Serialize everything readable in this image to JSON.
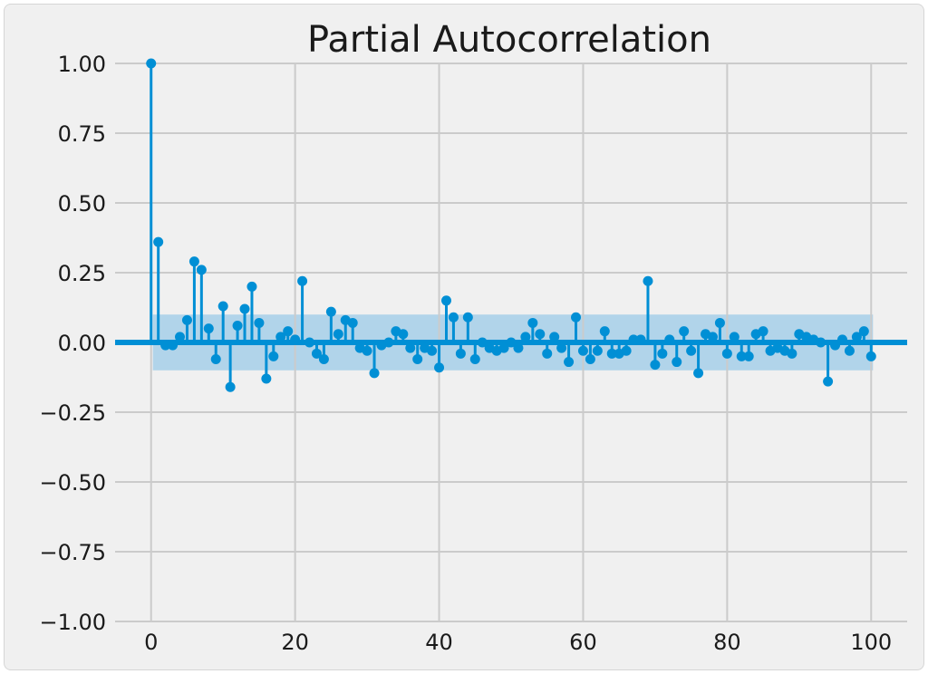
{
  "chart_data": {
    "type": "stem",
    "title": "Partial Autocorrelation",
    "xlabel": "",
    "ylabel": "",
    "xlim": [
      -5,
      105
    ],
    "ylim": [
      -1.0,
      1.0
    ],
    "xticks": [
      0,
      20,
      40,
      60,
      80,
      100
    ],
    "xtick_labels": [
      "0",
      "20",
      "40",
      "60",
      "80",
      "100"
    ],
    "yticks": [
      1.0,
      0.75,
      0.5,
      0.25,
      0.0,
      -0.25,
      -0.5,
      -0.75,
      -1.0
    ],
    "ytick_labels": [
      "1.00",
      "0.75",
      "0.50",
      "0.25",
      "0.00",
      "−0.25",
      "−0.50",
      "−0.75",
      "−1.00"
    ],
    "grid": true,
    "confidence_band": [
      -0.1,
      0.1
    ],
    "colors": {
      "series": "#008fd5",
      "band": "#8fc4e6",
      "grid": "#cbcbcb",
      "background": "#f0f0f0"
    },
    "lags": [
      0,
      1,
      2,
      3,
      4,
      5,
      6,
      7,
      8,
      9,
      10,
      11,
      12,
      13,
      14,
      15,
      16,
      17,
      18,
      19,
      20,
      21,
      22,
      23,
      24,
      25,
      26,
      27,
      28,
      29,
      30,
      31,
      32,
      33,
      34,
      35,
      36,
      37,
      38,
      39,
      40,
      41,
      42,
      43,
      44,
      45,
      46,
      47,
      48,
      49,
      50,
      51,
      52,
      53,
      54,
      55,
      56,
      57,
      58,
      59,
      60,
      61,
      62,
      63,
      64,
      65,
      66,
      67,
      68,
      69,
      70,
      71,
      72,
      73,
      74,
      75,
      76,
      77,
      78,
      79,
      80,
      81,
      82,
      83,
      84,
      85,
      86,
      87,
      88,
      89,
      90,
      91,
      92,
      93,
      94,
      95,
      96,
      97,
      98,
      99,
      100
    ],
    "values": [
      1.0,
      0.36,
      -0.01,
      -0.01,
      0.02,
      0.08,
      0.29,
      0.26,
      0.05,
      -0.06,
      0.13,
      -0.16,
      0.06,
      0.12,
      0.2,
      0.07,
      -0.13,
      -0.05,
      0.02,
      0.04,
      0.01,
      0.22,
      0.0,
      -0.04,
      -0.06,
      0.11,
      0.03,
      0.08,
      0.07,
      -0.02,
      -0.03,
      -0.11,
      -0.01,
      0.0,
      0.04,
      0.03,
      -0.02,
      -0.06,
      -0.02,
      -0.03,
      -0.09,
      0.15,
      0.09,
      -0.04,
      0.09,
      -0.06,
      0.0,
      -0.02,
      -0.03,
      -0.02,
      0.0,
      -0.02,
      0.02,
      0.07,
      0.03,
      -0.04,
      0.02,
      -0.02,
      -0.07,
      0.09,
      -0.03,
      -0.06,
      -0.03,
      0.04,
      -0.04,
      -0.04,
      -0.03,
      0.01,
      0.01,
      0.22,
      -0.08,
      -0.04,
      0.01,
      -0.07,
      0.04,
      -0.03,
      -0.11,
      0.03,
      0.02,
      0.07,
      -0.04,
      0.02,
      -0.05,
      -0.05,
      0.03,
      0.04,
      -0.03,
      -0.02,
      -0.03,
      -0.04,
      0.03,
      0.02,
      0.01,
      0.0,
      -0.14,
      -0.01,
      0.01,
      -0.03,
      0.02,
      0.04,
      -0.05
    ]
  }
}
